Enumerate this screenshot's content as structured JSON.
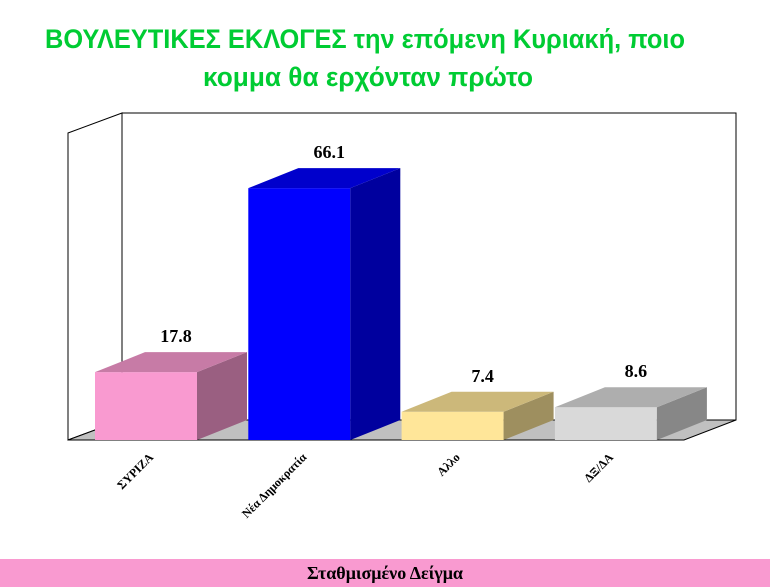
{
  "chart_data": {
    "type": "bar3d",
    "title": [
      "ΒΟΥΛΕΥΤΙΚΕΣ   ΕΚΛΟΓΕΣ  την επόμενη Κυριακή, ποιο",
      "κομμα θα ερχόνταν πρώτο"
    ],
    "categories": [
      "ΣΥΡΙΖΑ",
      "Νέα Δημοκρατία",
      "Αλλο",
      "ΔΞ/ΔΑ"
    ],
    "values": [
      17.8,
      66.1,
      7.4,
      8.6
    ],
    "colors": [
      "#f99ad0",
      "#0000ff",
      "#ffe699",
      "#d9d9d9"
    ],
    "footer": "Σταθμισμένο Δείγμα"
  }
}
